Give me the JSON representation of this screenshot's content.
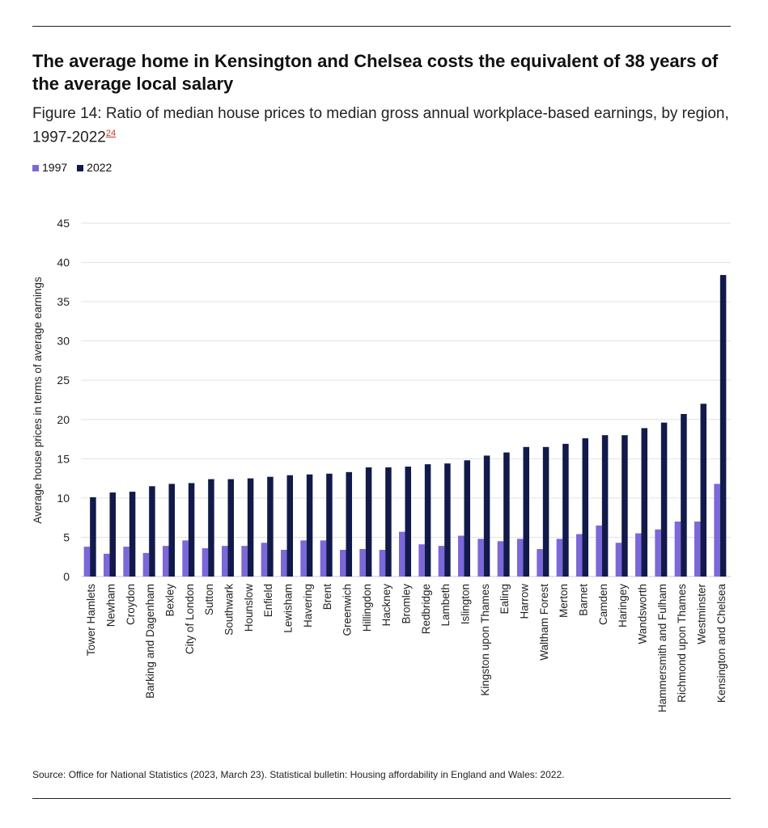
{
  "header": {
    "title": "The average home in Kensington and Chelsea costs the equivalent of 38 years of the average local salary",
    "subtitle": "Figure 14: Ratio of median house prices to median gross annual workplace-based earnings, by region, 1997-2022",
    "footnote_ref": "24"
  },
  "source": "Source: Office for National Statistics (2023, March 23). Statistical bulletin: Housing affordability in England and Wales: 2022.",
  "chart_data": {
    "type": "bar",
    "title": "",
    "xlabel": "",
    "ylabel": "Average house prices in terms of average earnings",
    "ylim": [
      0,
      45
    ],
    "yticks": [
      0,
      5,
      10,
      15,
      20,
      25,
      30,
      35,
      40,
      45
    ],
    "grid": true,
    "legend_position": "top-left",
    "categories": [
      "Tower Hamlets",
      "Newham",
      "Croydon",
      "Barking and Dagenham",
      "Bexley",
      "City of London",
      "Sutton",
      "Southwark",
      "Hounslow",
      "Enfield",
      "Lewisham",
      "Havering",
      "Brent",
      "Greenwich",
      "Hillingdon",
      "Hackney",
      "Bromley",
      "Redbridge",
      "Lambeth",
      "Islington",
      "Kingston upon Thames",
      "Ealing",
      "Harrow",
      "Waltham Forest",
      "Merton",
      "Barnet",
      "Camden",
      "Haringey",
      "Wandsworth",
      "Hammersmith and Fulham",
      "Richmond upon Thames",
      "Westminster",
      "Kensington and Chelsea"
    ],
    "series": [
      {
        "name": "1997",
        "color": "#7b68d9",
        "values": [
          3.8,
          2.9,
          3.8,
          3.0,
          3.9,
          4.6,
          3.6,
          3.9,
          3.9,
          4.3,
          3.4,
          4.6,
          4.6,
          3.4,
          3.5,
          3.4,
          5.7,
          4.1,
          3.9,
          5.2,
          4.8,
          4.5,
          4.8,
          3.5,
          4.8,
          5.4,
          6.5,
          4.3,
          5.5,
          6.0,
          7.0,
          7.0,
          11.8
        ]
      },
      {
        "name": "2022",
        "color": "#111a4a",
        "values": [
          10.1,
          10.7,
          10.8,
          11.5,
          11.8,
          11.9,
          12.4,
          12.4,
          12.5,
          12.7,
          12.9,
          13.0,
          13.1,
          13.3,
          13.9,
          13.9,
          14.0,
          14.3,
          14.4,
          14.8,
          15.4,
          15.8,
          16.5,
          16.5,
          16.9,
          17.6,
          18.0,
          18.0,
          18.9,
          19.6,
          20.7,
          22.0,
          38.4
        ]
      }
    ]
  }
}
